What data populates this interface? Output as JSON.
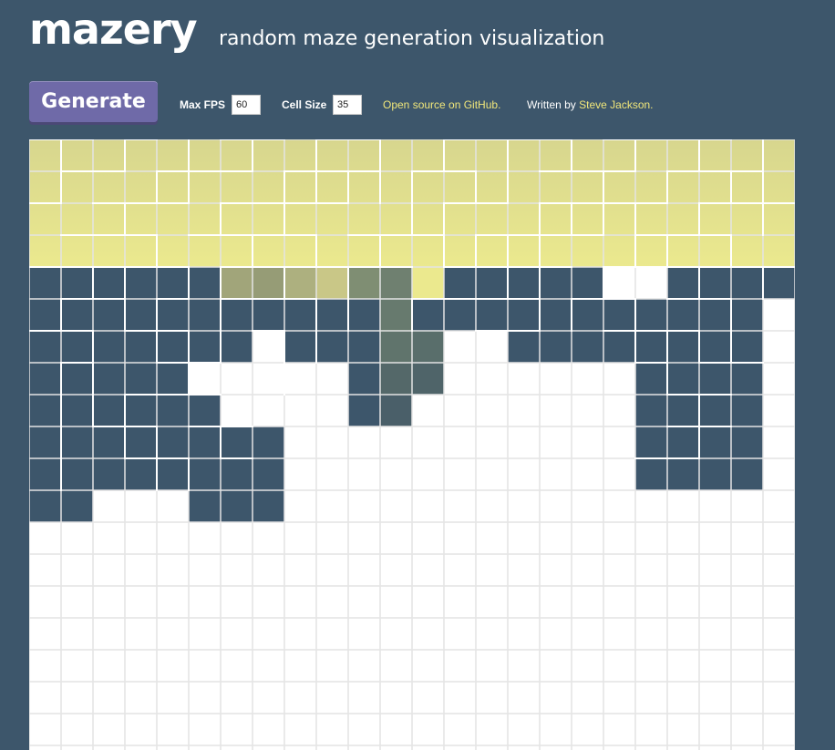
{
  "header": {
    "title": "mazery",
    "tagline": "random maze generation visualization"
  },
  "controls": {
    "generate_label": "Generate",
    "max_fps_label": "Max FPS",
    "max_fps_value": "60",
    "cell_size_label": "Cell Size",
    "cell_size_value": "35",
    "github_link": "Open source on GitHub.",
    "written_by_prefix": "Written by",
    "author_link": "Steve Jackson."
  },
  "colors": {
    "page_background": "#3d566b",
    "visited_cell": "#3d566b",
    "unvisited_cell": "#ffffff",
    "grid_line": "#e4e4e4",
    "wall_line": "#ffffff",
    "highlight_gradient_top": "#d7d68e",
    "highlight_gradient_bottom": "#ebe98e",
    "stack_path": "#7a8a72",
    "current_cell": "#ebe98e",
    "accent_link": "#f0e67a",
    "button": "#6f6aa8"
  },
  "maze": {
    "cell_size": 35,
    "columns": 24,
    "rows": 20,
    "cells": [
      "HHHHHHHHHHHHHHHHHHHHHHHH",
      "HHHHHHHHHHHHHHHHHHHHHHHH",
      "HHHHHHHHHHHHHHHHHHHHHHHH",
      "HHHHHHHHHHHHHHHHHHHHHHHH",
      "VVVVVVSSSSSSCVVVVVUUVVVV",
      "VVVVVVVVVVVSVVVVVVVVVVVU",
      "VVVVVVVUVVVSSUUVVVVVVVVU",
      "VVVVVUUUUUVSSUUUUUUVVVVU",
      "VVVVVVUUUUVSUUUUUUUVVVVU",
      "VVVVVVVVUUUUUUUUUUUVVVVU",
      "VVVVVVVVUUUUUUUUUUUVVVVU",
      "VVUUUVVVUUUUUUUUUUUUUUUU",
      "UUUUUUUUUUUUUUUUUUUUUUUU",
      "UUUUUUUUUUUUUUUUUUUUUUUU",
      "UUUUUUUUUUUUUUUUUUUUUUUU",
      "UUUUUUUUUUUUUUUUUUUUUUUU",
      "UUUUUUUUUUUUUUUUUUUUUUUU",
      "UUUUUUUUUUUUUUUUUUUUUUUU",
      "UUUUUUUUUUUUUUUUUUUUUUUU",
      "UUUUUUUUUUUUUUUUUUUUUUUU"
    ],
    "stack_shades": [
      {
        "row": 4,
        "col": 6,
        "color": "#a1a57a"
      },
      {
        "row": 4,
        "col": 7,
        "color": "#969c76"
      },
      {
        "row": 4,
        "col": 8,
        "color": "#adb07f"
      },
      {
        "row": 4,
        "col": 9,
        "color": "#c9c787"
      },
      {
        "row": 4,
        "col": 10,
        "color": "#7f8e73"
      },
      {
        "row": 4,
        "col": 11,
        "color": "#6f8070"
      },
      {
        "row": 4,
        "col": 12,
        "color": "#ebe98e"
      },
      {
        "row": 5,
        "col": 11,
        "color": "#677a6e"
      },
      {
        "row": 6,
        "col": 11,
        "color": "#60746c"
      },
      {
        "row": 6,
        "col": 12,
        "color": "#596e6b"
      },
      {
        "row": 7,
        "col": 10,
        "color": "#4d6168"
      },
      {
        "row": 7,
        "col": 11,
        "color": "#546869"
      },
      {
        "row": 7,
        "col": 12,
        "color": "#4f6469"
      },
      {
        "row": 8,
        "col": 10,
        "color": "#465b69"
      },
      {
        "row": 8,
        "col": 11,
        "color": "#4a5f69"
      }
    ],
    "h_walls": [
      [
        0,
        0,
        2
      ],
      [
        0,
        3,
        4
      ],
      [
        0,
        6,
        8
      ],
      [
        0,
        9,
        11
      ],
      [
        0,
        13,
        17
      ],
      [
        0,
        18,
        22
      ],
      [
        1,
        1,
        3
      ],
      [
        1,
        4,
        7
      ],
      [
        1,
        8,
        11
      ],
      [
        1,
        12,
        14
      ],
      [
        1,
        16,
        19
      ],
      [
        1,
        20,
        23
      ],
      [
        2,
        0,
        1
      ],
      [
        2,
        2,
        5
      ],
      [
        2,
        6,
        10
      ],
      [
        2,
        13,
        15
      ],
      [
        2,
        16,
        20
      ],
      [
        2,
        21,
        24
      ],
      [
        3,
        1,
        4
      ],
      [
        3,
        5,
        9
      ],
      [
        3,
        10,
        13
      ],
      [
        3,
        14,
        18
      ],
      [
        3,
        19,
        22
      ],
      [
        4,
        0,
        5
      ],
      [
        4,
        6,
        12
      ],
      [
        4,
        13,
        17
      ],
      [
        4,
        18,
        24
      ],
      [
        5,
        1,
        3
      ],
      [
        5,
        4,
        5
      ],
      [
        5,
        6,
        9
      ],
      [
        5,
        12,
        16
      ],
      [
        5,
        17,
        19
      ],
      [
        5,
        20,
        22
      ],
      [
        6,
        0,
        2
      ],
      [
        6,
        3,
        5
      ],
      [
        6,
        7,
        8
      ],
      [
        6,
        14,
        16
      ],
      [
        6,
        18,
        21
      ],
      [
        7,
        1,
        2
      ],
      [
        7,
        4,
        6
      ],
      [
        7,
        19,
        20
      ],
      [
        7,
        21,
        23
      ],
      [
        8,
        3,
        6
      ],
      [
        8,
        20,
        22
      ],
      [
        9,
        2,
        4
      ],
      [
        9,
        5,
        7
      ],
      [
        9,
        20,
        22
      ],
      [
        10,
        3,
        5
      ],
      [
        10,
        6,
        7
      ],
      [
        10,
        19,
        21
      ]
    ],
    "v_walls": [
      [
        1,
        0,
        2
      ],
      [
        1,
        5,
        6
      ],
      [
        1,
        7,
        11
      ],
      [
        2,
        4,
        5
      ],
      [
        2,
        6,
        9
      ],
      [
        3,
        0,
        1
      ],
      [
        3,
        2,
        3
      ],
      [
        3,
        4,
        6
      ],
      [
        3,
        8,
        10
      ],
      [
        4,
        1,
        2
      ],
      [
        4,
        3,
        4
      ],
      [
        4,
        5,
        7
      ],
      [
        4,
        9,
        11
      ],
      [
        5,
        0,
        2
      ],
      [
        5,
        4,
        5
      ],
      [
        5,
        6,
        8
      ],
      [
        5,
        10,
        11
      ],
      [
        6,
        2,
        3
      ],
      [
        6,
        4,
        7
      ],
      [
        6,
        9,
        10
      ],
      [
        7,
        0,
        1
      ],
      [
        7,
        3,
        4
      ],
      [
        8,
        1,
        3
      ],
      [
        8,
        4,
        5
      ],
      [
        8,
        6,
        8
      ],
      [
        9,
        0,
        2
      ],
      [
        9,
        3,
        4
      ],
      [
        9,
        5,
        7
      ],
      [
        10,
        1,
        2
      ],
      [
        10,
        4,
        6
      ],
      [
        11,
        0,
        2
      ],
      [
        11,
        3,
        4
      ],
      [
        12,
        1,
        3
      ],
      [
        12,
        5,
        6
      ],
      [
        13,
        0,
        1
      ],
      [
        13,
        2,
        4
      ],
      [
        14,
        1,
        2
      ],
      [
        14,
        3,
        4
      ],
      [
        15,
        0,
        2
      ],
      [
        15,
        3,
        5
      ],
      [
        16,
        2,
        4
      ],
      [
        16,
        4,
        6
      ],
      [
        17,
        0,
        1
      ],
      [
        17,
        2,
        3
      ],
      [
        17,
        5,
        6
      ],
      [
        18,
        1,
        3
      ],
      [
        18,
        4,
        5
      ],
      [
        19,
        0,
        1
      ],
      [
        19,
        2,
        4
      ],
      [
        19,
        5,
        7
      ],
      [
        20,
        1,
        2
      ],
      [
        20,
        3,
        4
      ],
      [
        20,
        6,
        8
      ],
      [
        21,
        0,
        1
      ],
      [
        21,
        2,
        3
      ],
      [
        21,
        4,
        5
      ],
      [
        21,
        6,
        7
      ],
      [
        21,
        8,
        10
      ],
      [
        22,
        1,
        2
      ],
      [
        22,
        3,
        4
      ],
      [
        22,
        5,
        7
      ],
      [
        23,
        0,
        3
      ],
      [
        23,
        4,
        5
      ]
    ]
  }
}
